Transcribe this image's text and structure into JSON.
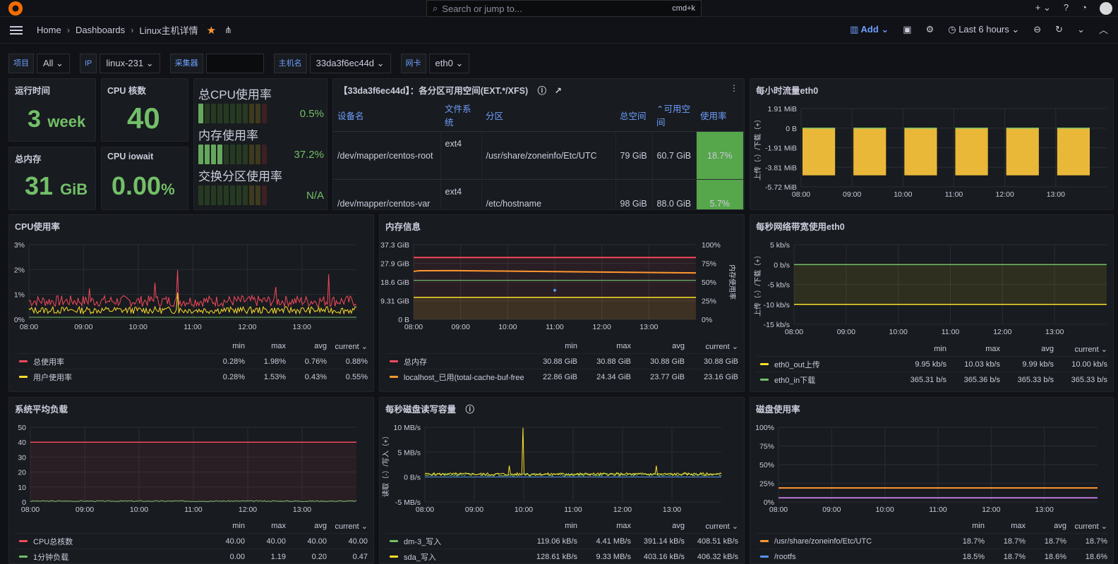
{
  "topbar": {
    "search_placeholder": "Search or jump to...",
    "search_shortcut": "cmd+k",
    "plus": "+ ⌄",
    "help": "?",
    "rss": "◔"
  },
  "breadcrumb": {
    "home": "Home",
    "dashboards": "Dashboards",
    "current": "Linux主机详情"
  },
  "toolbar": {
    "add": "Add",
    "time_range": "Last 6 hours"
  },
  "variables": [
    {
      "label": "项目",
      "value": "All ⌄"
    },
    {
      "label": "IP",
      "value": "linux-231 ⌄"
    },
    {
      "label": "采集器",
      "value": ""
    },
    {
      "label": "主机名",
      "value": "33da3f6ec44d ⌄"
    },
    {
      "label": "网卡",
      "value": "eth0 ⌄"
    }
  ],
  "stats": {
    "uptime": {
      "title": "运行时间",
      "value": "3",
      "unit": "week"
    },
    "cpu_cores": {
      "title": "CPU 核数",
      "value": "40"
    },
    "total_mem": {
      "title": "总内存",
      "value": "31",
      "unit": "GiB"
    },
    "cpu_iowait": {
      "title": "CPU iowait",
      "value": "0.00",
      "unit": "%"
    }
  },
  "gauges": [
    {
      "title": "总CPU使用率",
      "value": "0.5%",
      "fill": 0.005
    },
    {
      "title": "内存使用率",
      "value": "37.2%",
      "fill": 0.372
    },
    {
      "title": "交换分区使用率",
      "value": "N/A",
      "fill": 0
    }
  ],
  "partition_table": {
    "title": "【33da3f6ec44d】：各分区可用空间(EXT.*/XFS)",
    "headers": [
      "设备名",
      "文件系统",
      "分区",
      "总空间",
      "可用空间",
      "使用率"
    ],
    "rows": [
      [
        "/dev/mapper/centos-root",
        "ext4",
        "/usr/share/zoneinfo/Etc/UTC",
        "79 GiB",
        "60.7 GiB",
        "18.7%"
      ],
      [
        "/dev/mapper/centos-var",
        "ext4",
        "/etc/hostname",
        "98 GiB",
        "88.0 GiB",
        "5.7%"
      ]
    ]
  },
  "legend_headers": {
    "min": "min",
    "max": "max",
    "avg": "avg",
    "current": "current ⌄"
  },
  "colors": {
    "green": "#73bf69",
    "red": "#f2495c",
    "yellow": "#fade2a",
    "orange": "#ff9830",
    "blue": "#6e9fff",
    "purple": "#b877d9",
    "cyan": "#5794f2"
  },
  "charts": {
    "hourly_traffic": {
      "title": "每小时流量eth0",
      "ylabel": "上传（-）/下载（+）",
      "yticks": [
        "1.91 MiB",
        "0 B",
        "-1.91 MiB",
        "-3.81 MiB",
        "-5.72 MiB"
      ],
      "xticks": [
        "08:00",
        "09:00",
        "10:00",
        "11:00",
        "12:00",
        "13:00"
      ]
    },
    "cpu_usage": {
      "title": "CPU使用率",
      "yticks": [
        "3%",
        "2%",
        "1%",
        "0%"
      ],
      "xticks": [
        "08:00",
        "09:00",
        "10:00",
        "11:00",
        "12:00",
        "13:00"
      ],
      "legend": [
        {
          "name": "总使用率",
          "color": "#f2495c",
          "min": "0.28%",
          "max": "1.98%",
          "avg": "0.76%",
          "current": "0.88%"
        },
        {
          "name": "用户使用率",
          "color": "#fade2a",
          "min": "0.28%",
          "max": "1.53%",
          "avg": "0.43%",
          "current": "0.55%"
        }
      ]
    },
    "memory_info": {
      "title": "内存信息",
      "yticks": [
        "37.3 GiB",
        "27.9 GiB",
        "18.6 GiB",
        "9.31 GiB",
        "0 B"
      ],
      "yticks_right": [
        "100%",
        "75%",
        "50%",
        "25%",
        "0%"
      ],
      "ylabel_right": "内存使用率",
      "xticks": [
        "08:00",
        "09:00",
        "10:00",
        "11:00",
        "12:00",
        "13:00"
      ],
      "legend": [
        {
          "name": "总内存",
          "color": "#f2495c",
          "min": "30.88 GiB",
          "max": "30.88 GiB",
          "avg": "30.88 GiB",
          "current": "30.88 GiB"
        },
        {
          "name": "localhost_已用(total-cache-buf-free)",
          "color": "#ff9830",
          "min": "22.86 GiB",
          "max": "24.34 GiB",
          "avg": "23.77 GiB",
          "current": "23.16 GiB"
        }
      ]
    },
    "net_bandwidth": {
      "title": "每秒网络带宽使用eth0",
      "ylabel": "上传（-）/下载（+）",
      "yticks": [
        "5 kb/s",
        "0 b/s",
        "-5 kb/s",
        "-10 kb/s",
        "-15 kb/s"
      ],
      "xticks": [
        "08:00",
        "09:00",
        "10:00",
        "11:00",
        "12:00",
        "13:00"
      ],
      "legend": [
        {
          "name": "eth0_out上传",
          "color": "#fade2a",
          "min": "9.95 kb/s",
          "max": "10.03 kb/s",
          "avg": "9.99 kb/s",
          "current": "10.00 kb/s"
        },
        {
          "name": "eth0_in下载",
          "color": "#73bf69",
          "min": "365.31 b/s",
          "max": "365.36 b/s",
          "avg": "365.33 b/s",
          "current": "365.33 b/s"
        }
      ]
    },
    "load_avg": {
      "title": "系统平均负载",
      "yticks": [
        "50",
        "40",
        "30",
        "20",
        "10",
        "0"
      ],
      "xticks": [
        "08:00",
        "09:00",
        "10:00",
        "11:00",
        "12:00",
        "13:00"
      ],
      "legend": [
        {
          "name": "CPU总核数",
          "color": "#f2495c",
          "min": "40.00",
          "max": "40.00",
          "avg": "40.00",
          "current": "40.00"
        },
        {
          "name": "1分钟负载",
          "color": "#73bf69",
          "min": "0.00",
          "max": "1.19",
          "avg": "0.20",
          "current": "0.47"
        }
      ]
    },
    "disk_io": {
      "title": "每秒磁盘读写容量",
      "ylabel": "读取（-）/写入（+）",
      "yticks": [
        "10 MB/s",
        "5 MB/s",
        "0 B/s",
        "-5 MB/s"
      ],
      "xticks": [
        "08:00",
        "09:00",
        "10:00",
        "11:00",
        "12:00",
        "13:00"
      ],
      "legend": [
        {
          "name": "dm-3_写入",
          "color": "#73bf69",
          "min": "119.06 kB/s",
          "max": "4.41 MB/s",
          "avg": "391.14 kB/s",
          "current": "408.51 kB/s"
        },
        {
          "name": "sda_写入",
          "color": "#fade2a",
          "min": "128.61 kB/s",
          "max": "9.33 MB/s",
          "avg": "403.16 kB/s",
          "current": "406.32 kB/s"
        }
      ]
    },
    "disk_usage": {
      "title": "磁盘使用率",
      "yticks": [
        "100%",
        "75%",
        "50%",
        "25%",
        "0%"
      ],
      "xticks": [
        "08:00",
        "09:00",
        "10:00",
        "11:00",
        "12:00",
        "13:00"
      ],
      "legend": [
        {
          "name": "/usr/share/zoneinfo/Etc/UTC",
          "color": "#ff9830",
          "min": "18.7%",
          "max": "18.7%",
          "avg": "18.7%",
          "current": "18.7%"
        },
        {
          "name": "/rootfs",
          "color": "#5794f2",
          "min": "18.5%",
          "max": "18.7%",
          "avg": "18.6%",
          "current": "18.6%"
        }
      ]
    }
  },
  "chart_data": [
    {
      "type": "bar",
      "title": "每小时流量eth0",
      "categories": [
        "08:00",
        "09:00",
        "10:00",
        "11:00",
        "12:00",
        "13:00"
      ],
      "values": [
        -4.6,
        -4.6,
        -4.6,
        -4.6,
        -4.6,
        -4.6
      ],
      "ylabel": "上传（-）/下载（+）",
      "ylim": [
        -5.72,
        1.91
      ]
    },
    {
      "type": "line",
      "title": "CPU使用率",
      "series": [
        {
          "name": "总使用率",
          "avg": 0.76,
          "max": 1.98
        },
        {
          "name": "用户使用率",
          "avg": 0.43,
          "max": 1.53
        }
      ],
      "ylim": [
        0,
        3
      ]
    },
    {
      "type": "line",
      "title": "内存信息",
      "series": [
        {
          "name": "总内存",
          "value": 30.88
        },
        {
          "name": "localhost_已用(total-cache-buf-free)",
          "value": 23.77
        }
      ],
      "ylim": [
        0,
        37.3
      ]
    },
    {
      "type": "line",
      "title": "每秒网络带宽使用eth0",
      "series": [
        {
          "name": "eth0_out上传",
          "value": -10
        },
        {
          "name": "eth0_in下载",
          "value": 0.365
        }
      ],
      "ylim": [
        -15,
        5
      ]
    },
    {
      "type": "line",
      "title": "系统平均负载",
      "series": [
        {
          "name": "CPU总核数",
          "value": 40
        },
        {
          "name": "1分钟负载",
          "value": 0.2
        }
      ],
      "ylim": [
        0,
        50
      ]
    },
    {
      "type": "line",
      "title": "每秒磁盘读写容量",
      "series": [
        {
          "name": "dm-3_写入",
          "avg": 0.39
        },
        {
          "name": "sda_写入",
          "avg": 0.4,
          "max": 9.33
        }
      ],
      "ylim": [
        -5,
        10
      ]
    },
    {
      "type": "line",
      "title": "磁盘使用率",
      "series": [
        {
          "name": "/usr/share/zoneinfo/Etc/UTC",
          "value": 18.7
        },
        {
          "name": "/rootfs",
          "value": 18.6
        }
      ],
      "ylim": [
        0,
        100
      ]
    }
  ]
}
